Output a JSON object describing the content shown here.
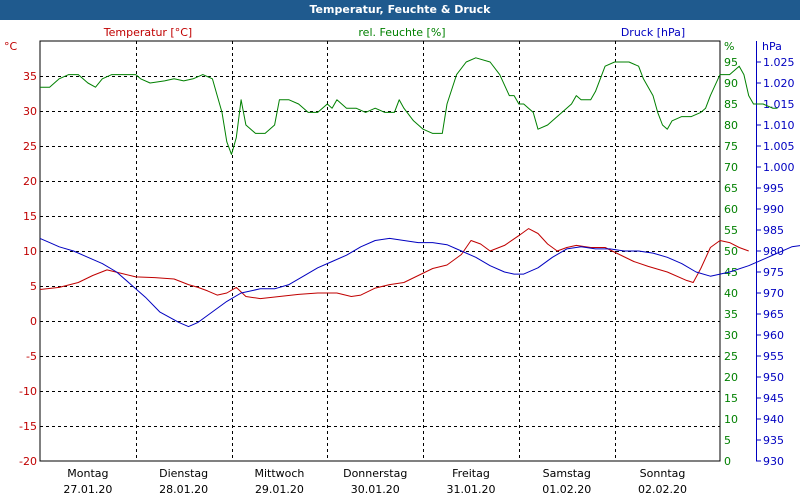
{
  "chart_data": {
    "type": "line",
    "title": "Temperatur, Feuchte & Druck",
    "axes": {
      "left": {
        "label": "Temperatur [°C]",
        "unit": "°C",
        "ylim": [
          -20,
          40
        ],
        "ticks": [
          -20,
          -15,
          -10,
          -5,
          0,
          5,
          10,
          15,
          20,
          25,
          30,
          35
        ],
        "color": "#c00000"
      },
      "middle": {
        "label": "rel. Feuchte [%]",
        "unit": "%",
        "ylim": [
          0,
          100
        ],
        "ticks": [
          0,
          5,
          10,
          15,
          20,
          25,
          30,
          35,
          40,
          45,
          50,
          55,
          60,
          65,
          70,
          75,
          80,
          85,
          90,
          95
        ],
        "color": "#008000"
      },
      "right": {
        "label": "Druck [hPa]",
        "unit": "hPa",
        "ylim": [
          930,
          1030
        ],
        "ticks": [
          "930",
          "935",
          "940",
          "945",
          "950",
          "955",
          "960",
          "965",
          "970",
          "975",
          "980",
          "985",
          "990",
          "995",
          "1.000",
          "1.005",
          "1.010",
          "1.015",
          "1.020",
          "1.025"
        ],
        "color": "#0000c0"
      }
    },
    "x_days": [
      {
        "day": "Montag",
        "date": "27.01.20"
      },
      {
        "day": "Dienstag",
        "date": "28.01.20"
      },
      {
        "day": "Mittwoch",
        "date": "29.01.20"
      },
      {
        "day": "Donnerstag",
        "date": "30.01.20"
      },
      {
        "day": "Freitag",
        "date": "31.01.20"
      },
      {
        "day": "Samstag",
        "date": "01.02.20"
      },
      {
        "day": "Sonntag",
        "date": "02.02.20"
      }
    ],
    "xlim_days": [
      0,
      7.1
    ],
    "grid": true,
    "series": [
      {
        "name": "Temperatur [°C]",
        "axis": "left",
        "color": "#c00000",
        "points": [
          [
            0,
            4.5
          ],
          [
            0.2,
            4.8
          ],
          [
            0.4,
            5.5
          ],
          [
            0.55,
            6.5
          ],
          [
            0.7,
            7.3
          ],
          [
            0.85,
            6.8
          ],
          [
            1.0,
            6.3
          ],
          [
            1.2,
            6.2
          ],
          [
            1.4,
            6.0
          ],
          [
            1.55,
            5.2
          ],
          [
            1.65,
            4.8
          ],
          [
            1.75,
            4.3
          ],
          [
            1.85,
            3.7
          ],
          [
            1.95,
            4.0
          ],
          [
            2.05,
            4.8
          ],
          [
            2.15,
            3.5
          ],
          [
            2.3,
            3.2
          ],
          [
            2.5,
            3.5
          ],
          [
            2.7,
            3.8
          ],
          [
            2.9,
            4.0
          ],
          [
            3.1,
            4.0
          ],
          [
            3.25,
            3.5
          ],
          [
            3.35,
            3.7
          ],
          [
            3.5,
            4.7
          ],
          [
            3.65,
            5.2
          ],
          [
            3.8,
            5.5
          ],
          [
            3.95,
            6.5
          ],
          [
            4.1,
            7.5
          ],
          [
            4.25,
            8.0
          ],
          [
            4.4,
            9.5
          ],
          [
            4.5,
            11.5
          ],
          [
            4.6,
            11.0
          ],
          [
            4.7,
            10.0
          ],
          [
            4.85,
            10.8
          ],
          [
            5.0,
            12.2
          ],
          [
            5.1,
            13.2
          ],
          [
            5.2,
            12.5
          ],
          [
            5.3,
            11.0
          ],
          [
            5.4,
            10.0
          ],
          [
            5.5,
            10.5
          ],
          [
            5.6,
            10.8
          ],
          [
            5.75,
            10.5
          ],
          [
            5.9,
            10.5
          ],
          [
            6.05,
            9.5
          ],
          [
            6.2,
            8.5
          ],
          [
            6.35,
            7.8
          ],
          [
            6.55,
            7.0
          ],
          [
            6.75,
            5.8
          ],
          [
            6.82,
            5.5
          ],
          [
            6.9,
            7.5
          ],
          [
            7.0,
            10.5
          ],
          [
            7.1,
            11.5
          ],
          [
            7.2,
            11.2
          ],
          [
            7.3,
            10.5
          ],
          [
            7.4,
            10.0
          ]
        ]
      },
      {
        "name": "rel. Feuchte [%]",
        "axis": "middle",
        "color": "#008000",
        "points": [
          [
            0,
            89
          ],
          [
            0.1,
            89
          ],
          [
            0.2,
            91
          ],
          [
            0.3,
            92
          ],
          [
            0.4,
            92
          ],
          [
            0.5,
            90
          ],
          [
            0.58,
            89
          ],
          [
            0.65,
            91
          ],
          [
            0.75,
            92
          ],
          [
            0.9,
            92
          ],
          [
            1.0,
            92
          ],
          [
            1.05,
            91
          ],
          [
            1.15,
            90
          ],
          [
            1.3,
            90.5
          ],
          [
            1.4,
            91
          ],
          [
            1.5,
            90.5
          ],
          [
            1.6,
            91
          ],
          [
            1.7,
            92
          ],
          [
            1.8,
            91
          ],
          [
            1.85,
            87
          ],
          [
            1.9,
            83
          ],
          [
            1.95,
            76
          ],
          [
            2.0,
            73
          ],
          [
            2.05,
            77
          ],
          [
            2.1,
            86
          ],
          [
            2.15,
            80
          ],
          [
            2.25,
            78
          ],
          [
            2.35,
            78
          ],
          [
            2.45,
            80
          ],
          [
            2.5,
            86
          ],
          [
            2.6,
            86
          ],
          [
            2.7,
            85
          ],
          [
            2.8,
            83
          ],
          [
            2.9,
            83
          ],
          [
            3.0,
            85
          ],
          [
            3.05,
            84
          ],
          [
            3.1,
            86
          ],
          [
            3.2,
            84
          ],
          [
            3.3,
            84
          ],
          [
            3.4,
            83
          ],
          [
            3.5,
            84
          ],
          [
            3.6,
            83
          ],
          [
            3.7,
            83
          ],
          [
            3.75,
            86
          ],
          [
            3.8,
            84
          ],
          [
            3.9,
            81
          ],
          [
            4.0,
            79
          ],
          [
            4.1,
            78
          ],
          [
            4.2,
            78
          ],
          [
            4.25,
            85
          ],
          [
            4.35,
            92
          ],
          [
            4.45,
            95
          ],
          [
            4.55,
            96
          ],
          [
            4.7,
            95
          ],
          [
            4.8,
            92
          ],
          [
            4.9,
            87
          ],
          [
            4.95,
            87
          ],
          [
            5.0,
            85
          ],
          [
            5.05,
            85
          ],
          [
            5.15,
            83
          ],
          [
            5.2,
            79
          ],
          [
            5.3,
            80
          ],
          [
            5.35,
            81
          ],
          [
            5.45,
            83
          ],
          [
            5.55,
            85
          ],
          [
            5.6,
            87
          ],
          [
            5.65,
            86
          ],
          [
            5.75,
            86
          ],
          [
            5.8,
            88
          ],
          [
            5.9,
            94
          ],
          [
            6.0,
            95
          ],
          [
            6.15,
            95
          ],
          [
            6.25,
            94
          ],
          [
            6.3,
            91
          ],
          [
            6.4,
            87
          ],
          [
            6.45,
            83
          ],
          [
            6.5,
            80
          ],
          [
            6.55,
            79
          ],
          [
            6.6,
            81
          ],
          [
            6.7,
            82
          ],
          [
            6.8,
            82
          ],
          [
            6.9,
            83
          ],
          [
            6.95,
            84
          ],
          [
            7.0,
            87
          ],
          [
            7.1,
            92
          ],
          [
            7.2,
            92
          ],
          [
            7.3,
            94
          ],
          [
            7.35,
            92
          ],
          [
            7.4,
            87
          ],
          [
            7.45,
            85
          ],
          [
            7.55,
            85
          ],
          [
            7.65,
            84
          ],
          [
            7.7,
            84
          ]
        ]
      },
      {
        "name": "Druck [hPa]",
        "axis": "right",
        "color": "#0000c0",
        "points": [
          [
            0,
            983
          ],
          [
            0.1,
            982
          ],
          [
            0.2,
            981
          ],
          [
            0.35,
            980
          ],
          [
            0.5,
            978.5
          ],
          [
            0.65,
            977
          ],
          [
            0.8,
            975
          ],
          [
            0.95,
            972
          ],
          [
            1.1,
            969
          ],
          [
            1.25,
            965.5
          ],
          [
            1.45,
            963
          ],
          [
            1.55,
            962
          ],
          [
            1.65,
            963
          ],
          [
            1.8,
            965.5
          ],
          [
            1.95,
            968
          ],
          [
            2.1,
            970
          ],
          [
            2.3,
            971
          ],
          [
            2.45,
            971
          ],
          [
            2.6,
            972
          ],
          [
            2.75,
            974
          ],
          [
            2.9,
            976
          ],
          [
            3.05,
            977.5
          ],
          [
            3.2,
            979
          ],
          [
            3.35,
            981
          ],
          [
            3.5,
            982.5
          ],
          [
            3.65,
            983
          ],
          [
            3.8,
            982.5
          ],
          [
            3.95,
            982
          ],
          [
            4.1,
            982
          ],
          [
            4.25,
            981.5
          ],
          [
            4.4,
            980
          ],
          [
            4.55,
            978.5
          ],
          [
            4.7,
            976.5
          ],
          [
            4.85,
            975
          ],
          [
            4.95,
            974.5
          ],
          [
            5.05,
            974.5
          ],
          [
            5.2,
            976
          ],
          [
            5.35,
            978.5
          ],
          [
            5.5,
            980.5
          ],
          [
            5.65,
            981
          ],
          [
            5.8,
            980.5
          ],
          [
            5.95,
            980.5
          ],
          [
            6.1,
            980
          ],
          [
            6.25,
            980
          ],
          [
            6.4,
            979.5
          ],
          [
            6.55,
            978.5
          ],
          [
            6.7,
            977
          ],
          [
            6.85,
            975
          ],
          [
            7.0,
            974
          ],
          [
            7.2,
            975
          ],
          [
            7.4,
            976.5
          ],
          [
            7.55,
            978
          ],
          [
            7.7,
            979.5
          ],
          [
            7.85,
            981
          ],
          [
            8.0,
            981.5
          ],
          [
            8.15,
            981
          ],
          [
            8.3,
            979.5
          ],
          [
            8.4,
            977
          ],
          [
            8.5,
            976
          ],
          [
            8.65,
            977
          ],
          [
            8.8,
            979
          ],
          [
            8.95,
            980
          ],
          [
            9.05,
            980
          ]
        ]
      }
    ]
  }
}
